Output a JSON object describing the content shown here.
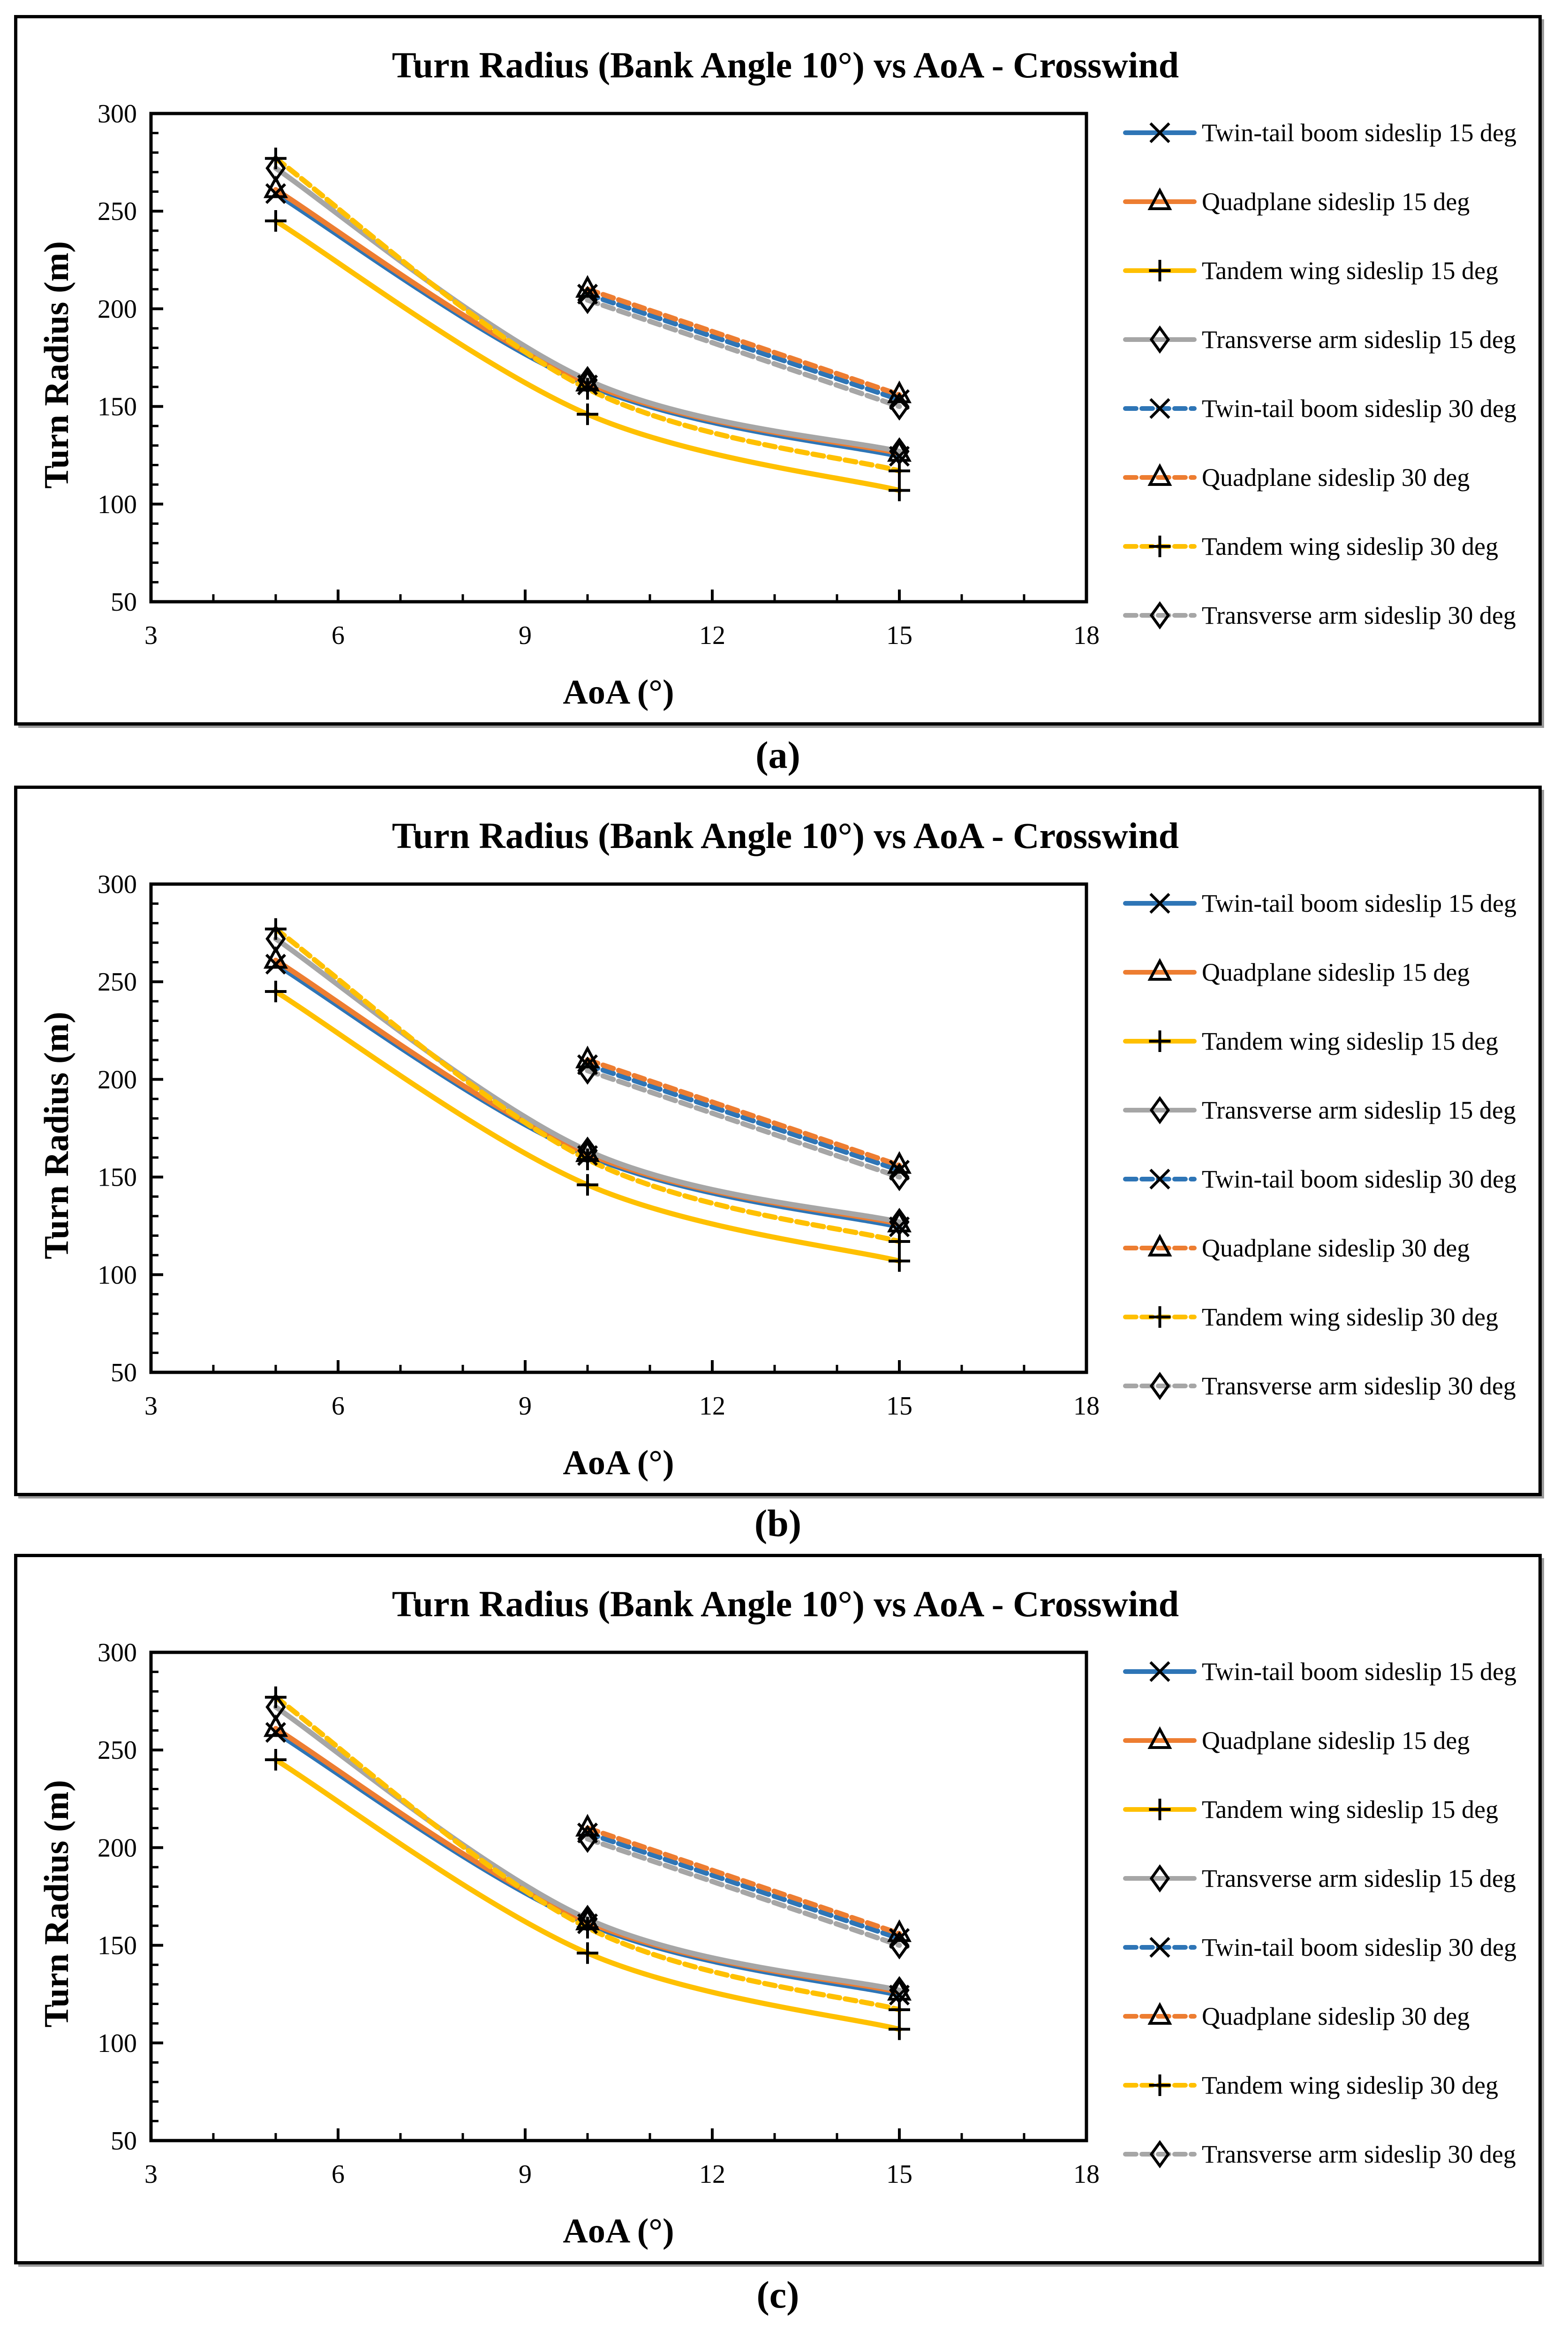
{
  "page": {
    "background": "#FFFFFF"
  },
  "captions": [
    "(a)",
    "(b)",
    "(c)"
  ],
  "palette": {
    "blue": "#2E75B6",
    "orange": "#ED7D31",
    "yellow": "#FFC000",
    "gray": "#A6A6A6",
    "marker": "#000000"
  },
  "chart_data": [
    {
      "type": "line",
      "title": "Turn Radius (Bank Angle 10°) vs AoA - Crosswind",
      "xlabel": "AoA (°)",
      "ylabel": "Turn Radius (m)",
      "xlim": [
        3,
        18
      ],
      "ylim": [
        50,
        300
      ],
      "xticks": [
        3,
        6,
        9,
        12,
        15,
        18
      ],
      "yticks": [
        50,
        100,
        150,
        200,
        250,
        300
      ],
      "x_minor_step": 1,
      "y_minor_step": 10,
      "grid": false,
      "legend_position": "right",
      "series": [
        {
          "name": "Twin-tail boom sideslip 15 deg",
          "color": "#2E75B6",
          "line_style": "solid",
          "marker": "x",
          "points": [
            [
              5,
              259
            ],
            [
              10,
              161
            ],
            [
              15,
              124.5
            ]
          ]
        },
        {
          "name": "Quadplane sideslip 15 deg",
          "color": "#ED7D31",
          "line_style": "solid",
          "marker": "triangle",
          "points": [
            [
              5,
              261
            ],
            [
              10,
              162
            ],
            [
              15,
              126
            ]
          ]
        },
        {
          "name": "Tandem wing sideslip 15 deg",
          "color": "#FFC000",
          "line_style": "solid",
          "marker": "plus",
          "points": [
            [
              5,
              245
            ],
            [
              10,
              146
            ],
            [
              15,
              107
            ]
          ]
        },
        {
          "name": "Transverse arm sideslip 15 deg",
          "color": "#A6A6A6",
          "line_style": "solid",
          "marker": "diamond",
          "points": [
            [
              5,
              272
            ],
            [
              10,
              163.5
            ],
            [
              15,
              127
            ]
          ]
        },
        {
          "name": "Twin-tail boom sideslip 30 deg",
          "color": "#2E75B6",
          "line_style": "dashed",
          "marker": "x",
          "points": [
            [
              10,
              207.5
            ],
            [
              15,
              153.5
            ]
          ]
        },
        {
          "name": "Quadplane sideslip 30 deg",
          "color": "#ED7D31",
          "line_style": "dashed",
          "marker": "triangle",
          "points": [
            [
              10,
              210
            ],
            [
              15,
              156
            ]
          ]
        },
        {
          "name": "Tandem wing sideslip 30 deg",
          "color": "#FFC000",
          "line_style": "dashed",
          "marker": "plus",
          "points": [
            [
              5,
              277
            ],
            [
              10,
              159
            ],
            [
              15,
              117
            ]
          ]
        },
        {
          "name": "Transverse arm sideslip 30 deg",
          "color": "#A6A6A6",
          "line_style": "dashed",
          "marker": "diamond",
          "points": [
            [
              10,
              204.5
            ],
            [
              15,
              150
            ]
          ]
        }
      ]
    },
    {
      "type": "line",
      "title": "Turn Radius (Bank Angle 10°) vs AoA - Crosswind",
      "xlabel": "AoA (°)",
      "ylabel": "Turn Radius (m)",
      "xlim": [
        3,
        18
      ],
      "ylim": [
        50,
        300
      ],
      "xticks": [
        3,
        6,
        9,
        12,
        15,
        18
      ],
      "yticks": [
        50,
        100,
        150,
        200,
        250,
        300
      ],
      "x_minor_step": 1,
      "y_minor_step": 10,
      "grid": false,
      "legend_position": "right",
      "series": [
        {
          "name": "Twin-tail boom sideslip 15 deg",
          "color": "#2E75B6",
          "line_style": "solid",
          "marker": "x",
          "points": [
            [
              5,
              259
            ],
            [
              10,
              161
            ],
            [
              15,
              124.5
            ]
          ]
        },
        {
          "name": "Quadplane sideslip 15 deg",
          "color": "#ED7D31",
          "line_style": "solid",
          "marker": "triangle",
          "points": [
            [
              5,
              261
            ],
            [
              10,
              162
            ],
            [
              15,
              126
            ]
          ]
        },
        {
          "name": "Tandem wing sideslip 15 deg",
          "color": "#FFC000",
          "line_style": "solid",
          "marker": "plus",
          "points": [
            [
              5,
              245
            ],
            [
              10,
              146
            ],
            [
              15,
              107
            ]
          ]
        },
        {
          "name": "Transverse arm sideslip 15 deg",
          "color": "#A6A6A6",
          "line_style": "solid",
          "marker": "diamond",
          "points": [
            [
              5,
              272
            ],
            [
              10,
              163.5
            ],
            [
              15,
              127
            ]
          ]
        },
        {
          "name": "Twin-tail boom sideslip 30 deg",
          "color": "#2E75B6",
          "line_style": "dashed",
          "marker": "x",
          "points": [
            [
              10,
              207.5
            ],
            [
              15,
              153.5
            ]
          ]
        },
        {
          "name": "Quadplane sideslip 30 deg",
          "color": "#ED7D31",
          "line_style": "dashed",
          "marker": "triangle",
          "points": [
            [
              10,
              210
            ],
            [
              15,
              156
            ]
          ]
        },
        {
          "name": "Tandem wing sideslip 30 deg",
          "color": "#FFC000",
          "line_style": "dashed",
          "marker": "plus",
          "points": [
            [
              5,
              277
            ],
            [
              10,
              159
            ],
            [
              15,
              117
            ]
          ]
        },
        {
          "name": "Transverse arm sideslip 30 deg",
          "color": "#A6A6A6",
          "line_style": "dashed",
          "marker": "diamond",
          "points": [
            [
              10,
              204.5
            ],
            [
              15,
              150
            ]
          ]
        }
      ]
    },
    {
      "type": "line",
      "title": "Turn Radius (Bank Angle 10°) vs AoA - Crosswind",
      "xlabel": "AoA (°)",
      "ylabel": "Turn Radius (m)",
      "xlim": [
        3,
        18
      ],
      "ylim": [
        50,
        300
      ],
      "xticks": [
        3,
        6,
        9,
        12,
        15,
        18
      ],
      "yticks": [
        50,
        100,
        150,
        200,
        250,
        300
      ],
      "x_minor_step": 1,
      "y_minor_step": 10,
      "grid": false,
      "legend_position": "right",
      "series": [
        {
          "name": "Twin-tail boom sideslip 15 deg",
          "color": "#2E75B6",
          "line_style": "solid",
          "marker": "x",
          "points": [
            [
              5,
              259
            ],
            [
              10,
              161
            ],
            [
              15,
              124.5
            ]
          ]
        },
        {
          "name": "Quadplane sideslip 15 deg",
          "color": "#ED7D31",
          "line_style": "solid",
          "marker": "triangle",
          "points": [
            [
              5,
              261
            ],
            [
              10,
              162
            ],
            [
              15,
              126
            ]
          ]
        },
        {
          "name": "Tandem wing sideslip 15 deg",
          "color": "#FFC000",
          "line_style": "solid",
          "marker": "plus",
          "points": [
            [
              5,
              245
            ],
            [
              10,
              146
            ],
            [
              15,
              107
            ]
          ]
        },
        {
          "name": "Transverse arm sideslip 15 deg",
          "color": "#A6A6A6",
          "line_style": "solid",
          "marker": "diamond",
          "points": [
            [
              5,
              272
            ],
            [
              10,
              163.5
            ],
            [
              15,
              127
            ]
          ]
        },
        {
          "name": "Twin-tail boom sideslip 30 deg",
          "color": "#2E75B6",
          "line_style": "dashed",
          "marker": "x",
          "points": [
            [
              10,
              207.5
            ],
            [
              15,
              153.5
            ]
          ]
        },
        {
          "name": "Quadplane sideslip 30 deg",
          "color": "#ED7D31",
          "line_style": "dashed",
          "marker": "triangle",
          "points": [
            [
              10,
              210
            ],
            [
              15,
              156
            ]
          ]
        },
        {
          "name": "Tandem wing sideslip 30 deg",
          "color": "#FFC000",
          "line_style": "dashed",
          "marker": "plus",
          "points": [
            [
              5,
              277
            ],
            [
              10,
              159
            ],
            [
              15,
              117
            ]
          ]
        },
        {
          "name": "Transverse arm sideslip 30 deg",
          "color": "#A6A6A6",
          "line_style": "dashed",
          "marker": "diamond",
          "points": [
            [
              10,
              204.5
            ],
            [
              15,
              150
            ]
          ]
        }
      ]
    }
  ]
}
